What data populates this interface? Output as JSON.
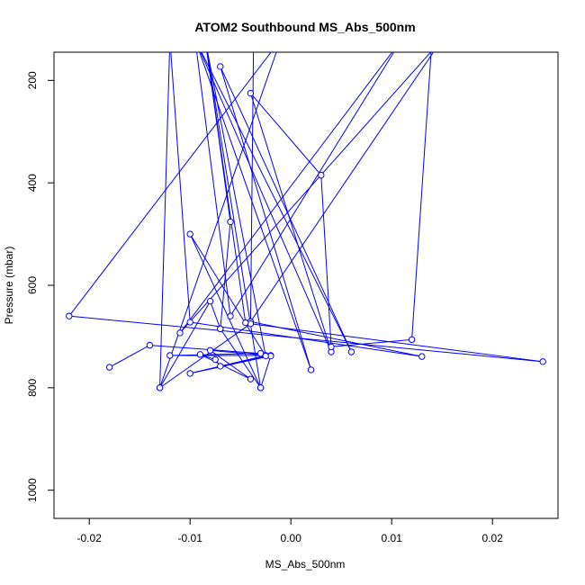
{
  "chart_data": {
    "type": "line",
    "title": "ATOM2 Southbound MS_Abs_500nm",
    "xlabel": "MS_Abs_500nm",
    "ylabel": "Pressure (mbar)",
    "xlim": [
      -0.0235,
      0.0265
    ],
    "ylim": [
      1055,
      145
    ],
    "y_reversed": true,
    "grid": false,
    "x_ticks": [
      -0.02,
      -0.01,
      0.0,
      0.01,
      0.02
    ],
    "x_tick_labels": [
      "-0.02",
      "-0.01",
      "0.00",
      "0.01",
      "0.02"
    ],
    "y_ticks": [
      200,
      400,
      600,
      800,
      1000
    ],
    "y_tick_labels": [
      "200",
      "400",
      "600",
      "800",
      "1000"
    ],
    "series": [
      {
        "color": "#0000ff",
        "marker": "open-circle",
        "points": [
          [
            -0.018,
            760
          ],
          [
            -0.014,
            717
          ],
          [
            -0.003,
            733
          ],
          [
            -0.012,
            737
          ],
          [
            -0.002,
            737
          ],
          [
            -0.007,
            758
          ],
          [
            -0.0075,
            745
          ],
          [
            -0.009,
            735
          ],
          [
            -0.004,
            783
          ],
          [
            -0.008,
            727
          ],
          [
            -0.0025,
            737
          ],
          [
            -0.01,
            772
          ],
          [
            -0.002,
            738
          ],
          [
            -0.003,
            800
          ],
          [
            -0.007,
            685
          ],
          [
            -0.008,
            631
          ],
          [
            -0.013,
            800
          ],
          [
            -0.004,
            675
          ],
          [
            0.025,
            749
          ],
          [
            -0.022,
            660
          ],
          [
            -0.001,
            120
          ],
          [
            -0.013,
            800
          ],
          [
            -0.012,
            120
          ],
          [
            -0.01,
            672
          ],
          [
            0.013,
            739
          ],
          [
            -0.004,
            671
          ],
          [
            0.015,
            120
          ],
          [
            -0.011,
            693
          ],
          [
            0.011,
            120
          ],
          [
            -0.006,
            660
          ],
          [
            -0.0095,
            120
          ],
          [
            0.006,
            730
          ],
          [
            -0.007,
            173
          ],
          [
            0.002,
            765
          ],
          [
            -0.0095,
            120
          ],
          [
            0.004,
            730
          ],
          [
            -0.004,
            225
          ],
          [
            0.003,
            385
          ],
          [
            0.004,
            720
          ],
          [
            0.012,
            706
          ],
          [
            0.014,
            120
          ],
          [
            -0.0037,
            120
          ],
          [
            -0.004,
            675
          ],
          [
            -0.0045,
            673
          ],
          [
            -0.0085,
            120
          ],
          [
            -0.0025,
            738
          ],
          [
            -0.01,
            500
          ],
          [
            -0.003,
            800
          ],
          [
            -0.0085,
            120
          ],
          [
            -0.006,
            476
          ],
          [
            -0.007,
            685
          ]
        ]
      }
    ]
  }
}
